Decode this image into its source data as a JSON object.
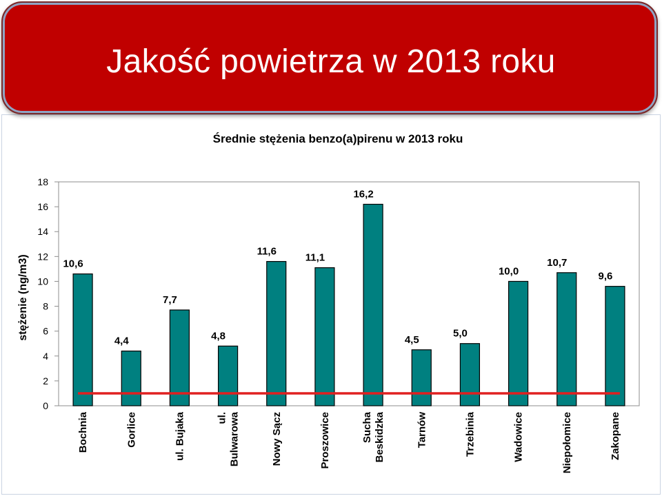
{
  "slide": {
    "title": "Jakość powietrza w 2013 roku",
    "banner_color": "#c00000"
  },
  "chart_data": {
    "type": "bar",
    "title": "Średnie stężenia benzo(a)pirenu w 2013 roku",
    "xlabel": "",
    "ylabel": "stężenie (ng/m3)",
    "ylim": [
      0,
      18
    ],
    "yticks": [
      0,
      2,
      4,
      6,
      8,
      10,
      12,
      14,
      16,
      18
    ],
    "grid": false,
    "categories": [
      [
        "Bochnia"
      ],
      [
        "Gorlice"
      ],
      [
        "ul. Bujaka"
      ],
      [
        "ul.",
        "Bulwarowa"
      ],
      [
        "Nowy Sącz"
      ],
      [
        "Proszowice"
      ],
      [
        "Sucha",
        "Beskidzka"
      ],
      [
        "Tarnów"
      ],
      [
        "Trzebinia"
      ],
      [
        "Wadowice"
      ],
      [
        "Niepołomice"
      ],
      [
        "Zakopane"
      ]
    ],
    "values": [
      10.6,
      4.4,
      7.7,
      4.8,
      11.6,
      11.1,
      16.2,
      4.5,
      5.0,
      10.0,
      10.7,
      9.6
    ],
    "data_labels": [
      "10,6",
      "4,4",
      "7,7",
      "4,8",
      "11,6",
      "11,1",
      "16,2",
      "4,5",
      "5,0",
      "10,0",
      "10,7",
      "9,6"
    ],
    "reference_line": {
      "value": 1,
      "color": "#e02020"
    },
    "bar_color": "#008080"
  }
}
